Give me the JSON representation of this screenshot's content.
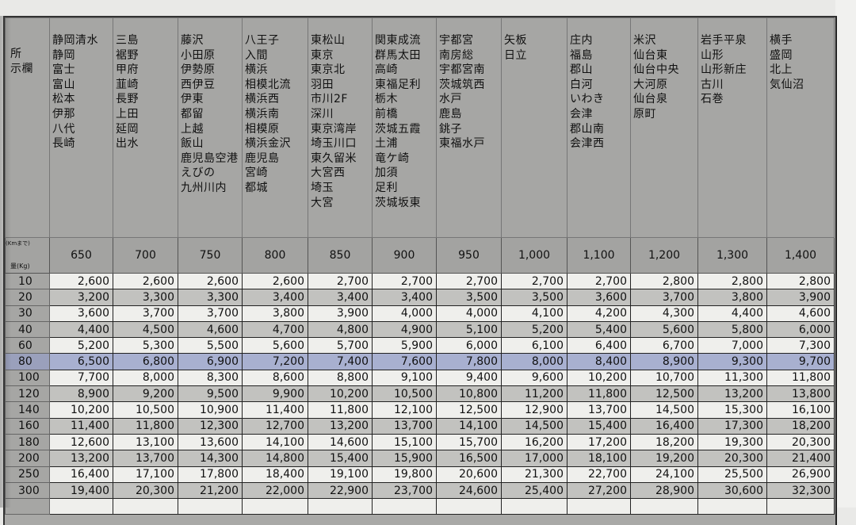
{
  "header": {
    "label_col": "所\n示欄",
    "places": [
      [
        "静岡清水",
        "静岡",
        "富士",
        "富山",
        "松本",
        "伊那",
        "八代",
        "長崎"
      ],
      [
        "三島",
        "裾野",
        "甲府",
        "韮崎",
        "長野",
        "上田",
        "延岡",
        "出水"
      ],
      [
        "藤沢",
        "小田原",
        "伊勢原",
        "西伊豆",
        "伊東",
        "都留",
        "上越",
        "飯山",
        "鹿児島空港",
        "えびの",
        "九州川内"
      ],
      [
        "八王子",
        "入間",
        "横浜",
        "相模北流",
        "横浜西",
        "横浜南",
        "相模原",
        "横浜金沢",
        "鹿児島",
        "宮崎",
        "都城"
      ],
      [
        "東松山",
        "東京",
        "東京北",
        "羽田",
        "市川2F",
        "深川",
        "東京湾岸",
        "埼玉川口",
        "東久留米",
        "大宮西",
        "埼玉",
        "大宮"
      ],
      [
        "関東成流",
        "群馬太田",
        "高崎",
        "東福足利",
        "栃木",
        "前橋",
        "茨城五霞",
        "土浦",
        "竜ケ崎",
        "加須",
        "足利",
        "茨城坂東"
      ],
      [
        "宇都宮",
        "南房総",
        "宇都宮南",
        "茨城筑西",
        "水戸",
        "鹿島",
        "銚子",
        "東福水戸"
      ],
      [
        "矢板",
        "日立"
      ],
      [
        "庄内",
        "福島",
        "郡山",
        "白河",
        "いわき",
        "会津",
        "郡山南",
        "会津西"
      ],
      [
        "米沢",
        "仙台東",
        "仙台中央",
        "大河原",
        "仙台泉",
        "原町"
      ],
      [
        "岩手平泉",
        "山形",
        "山形新庄",
        "古川",
        "石巻"
      ],
      [
        "横手",
        "盛岡",
        "北上",
        "気仙沼"
      ]
    ]
  },
  "distance_label": "(Kmまで)",
  "weight_label": "量(Kg)",
  "distances": [
    "650",
    "700",
    "750",
    "800",
    "850",
    "900",
    "950",
    "1,000",
    "1,100",
    "1,200",
    "1,300",
    "1,400"
  ],
  "highlight_color": "#a8b0d0",
  "highlighted_weight": "80",
  "rows": [
    {
      "w": "10",
      "v": [
        "2,600",
        "2,600",
        "2,600",
        "2,600",
        "2,700",
        "2,700",
        "2,700",
        "2,700",
        "2,700",
        "2,800",
        "2,800",
        "2,800"
      ]
    },
    {
      "w": "20",
      "v": [
        "3,200",
        "3,300",
        "3,300",
        "3,400",
        "3,400",
        "3,400",
        "3,500",
        "3,500",
        "3,600",
        "3,700",
        "3,800",
        "3,900"
      ]
    },
    {
      "w": "30",
      "v": [
        "3,600",
        "3,700",
        "3,700",
        "3,800",
        "3,900",
        "4,000",
        "4,000",
        "4,100",
        "4,200",
        "4,300",
        "4,400",
        "4,600"
      ]
    },
    {
      "w": "40",
      "v": [
        "4,400",
        "4,500",
        "4,600",
        "4,700",
        "4,800",
        "4,900",
        "5,100",
        "5,200",
        "5,400",
        "5,600",
        "5,800",
        "6,000"
      ]
    },
    {
      "w": "60",
      "v": [
        "5,200",
        "5,300",
        "5,500",
        "5,600",
        "5,700",
        "5,900",
        "6,000",
        "6,100",
        "6,400",
        "6,700",
        "7,000",
        "7,300"
      ]
    },
    {
      "w": "80",
      "v": [
        "6,500",
        "6,800",
        "6,900",
        "7,200",
        "7,400",
        "7,600",
        "7,800",
        "8,000",
        "8,400",
        "8,900",
        "9,300",
        "9,700"
      ]
    },
    {
      "w": "100",
      "v": [
        "7,700",
        "8,000",
        "8,300",
        "8,600",
        "8,800",
        "9,100",
        "9,400",
        "9,600",
        "10,200",
        "10,700",
        "11,300",
        "11,800"
      ]
    },
    {
      "w": "120",
      "v": [
        "8,900",
        "9,200",
        "9,500",
        "9,900",
        "10,200",
        "10,500",
        "10,800",
        "11,200",
        "11,800",
        "12,500",
        "13,200",
        "13,800"
      ]
    },
    {
      "w": "140",
      "v": [
        "10,200",
        "10,500",
        "10,900",
        "11,400",
        "11,800",
        "12,100",
        "12,500",
        "12,900",
        "13,700",
        "14,500",
        "15,300",
        "16,100"
      ]
    },
    {
      "w": "160",
      "v": [
        "11,400",
        "11,800",
        "12,300",
        "12,700",
        "13,200",
        "13,700",
        "14,100",
        "14,500",
        "15,400",
        "16,400",
        "17,300",
        "18,200"
      ]
    },
    {
      "w": "180",
      "v": [
        "12,600",
        "13,100",
        "13,600",
        "14,100",
        "14,600",
        "15,100",
        "15,700",
        "16,200",
        "17,200",
        "18,200",
        "19,300",
        "20,300"
      ]
    },
    {
      "w": "200",
      "v": [
        "13,200",
        "13,700",
        "14,300",
        "14,800",
        "15,400",
        "15,900",
        "16,500",
        "17,000",
        "18,100",
        "19,200",
        "20,300",
        "21,400"
      ]
    },
    {
      "w": "250",
      "v": [
        "16,400",
        "17,100",
        "17,800",
        "18,400",
        "19,100",
        "19,800",
        "20,600",
        "21,300",
        "22,700",
        "24,100",
        "25,500",
        "26,900"
      ]
    },
    {
      "w": "300",
      "v": [
        "19,400",
        "20,300",
        "21,200",
        "22,000",
        "22,900",
        "23,700",
        "24,600",
        "25,400",
        "27,200",
        "28,900",
        "30,600",
        "32,300"
      ]
    }
  ]
}
